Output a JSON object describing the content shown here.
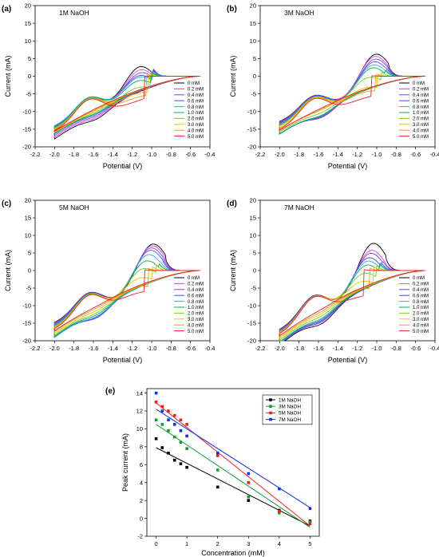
{
  "figure": {
    "panel_labels": [
      "(a)",
      "(b)",
      "(c)",
      "(d)",
      "(e)"
    ]
  },
  "chart_data": [
    {
      "type": "line",
      "panel": "(a)",
      "title": "1M NaOH",
      "xlabel": "Potential (V)",
      "ylabel": "Current (mA)",
      "xlim": [
        -2.2,
        -0.4
      ],
      "ylim": [
        -20,
        20
      ],
      "xticks": [
        "-2.2",
        "-2.0",
        "-1.8",
        "-1.6",
        "-1.4",
        "-1.2",
        "-1.0",
        "-0.8",
        "-0.6",
        "-0.4"
      ],
      "yticks": [
        "-20",
        "-15",
        "-10",
        "-5",
        "0",
        "5",
        "10",
        "15",
        "20"
      ],
      "legend": [
        "0 mM",
        "0.2 mM",
        "0.4 mM",
        "0.6 mM",
        "0.8 mM",
        "1.0 mM",
        "2.0 mM",
        "3.0 mM",
        "4.0 mM",
        "5.0 mM"
      ],
      "legend_position": "right",
      "start_x": -0.5,
      "vertex_x": -2.0,
      "series": [
        {
          "name": "0 mM",
          "values": [
            -15.0,
            9.2,
            -1.13
          ]
        },
        {
          "name": "0.2 mM",
          "values": [
            -14.8,
            8.2,
            -1.13
          ]
        },
        {
          "name": "0.4 mM",
          "values": [
            -14.6,
            7.3,
            -1.13
          ]
        },
        {
          "name": "0.6 mM",
          "values": [
            -14.4,
            6.5,
            -1.14
          ]
        },
        {
          "name": "0.8 mM",
          "values": [
            -14.2,
            6.0,
            -1.14
          ]
        },
        {
          "name": "1.0 mM",
          "values": [
            -14.6,
            5.2,
            -1.15
          ]
        },
        {
          "name": "2.0 mM",
          "values": [
            -15.0,
            3.5,
            -1.16
          ]
        },
        {
          "name": "3.0 mM",
          "values": [
            -15.2,
            2.0,
            -1.18
          ]
        },
        {
          "name": "4.0 mM",
          "values": [
            -15.4,
            1.0,
            -1.2
          ]
        },
        {
          "name": "5.0 mM",
          "values": [
            -15.6,
            0.0,
            -1.22
          ]
        }
      ]
    },
    {
      "type": "line",
      "panel": "(b)",
      "title": "3M NaOH",
      "xlabel": "Potential (V)",
      "ylabel": "Current (mA)",
      "xlim": [
        -2.2,
        -0.4
      ],
      "ylim": [
        -20,
        20
      ],
      "xticks": [
        "-2.2",
        "-2.0",
        "-1.8",
        "-1.6",
        "-1.4",
        "-1.2",
        "-1.0",
        "-0.8",
        "-0.6",
        "-0.4"
      ],
      "yticks": [
        "-20",
        "-15",
        "-10",
        "-5",
        "0",
        "5",
        "10",
        "15",
        "20"
      ],
      "legend": [
        "0 mM",
        "0.2 mM",
        "0.4 mM",
        "0.6 mM",
        "0.8 mM",
        "1.0 mM",
        "2.0 mM",
        "3.0 mM",
        "4.0 mM",
        "5.0 mM"
      ],
      "legend_position": "right",
      "start_x": -0.5,
      "vertex_x": -2.0,
      "series": [
        {
          "name": "0 mM",
          "values": [
            -13.0,
            11.0,
            -1.02
          ]
        },
        {
          "name": "0.2 mM",
          "values": [
            -13.2,
            10.5,
            -1.03
          ]
        },
        {
          "name": "0.4 mM",
          "values": [
            -13.4,
            9.8,
            -1.03
          ]
        },
        {
          "name": "0.6 mM",
          "values": [
            -13.6,
            9.2,
            -1.04
          ]
        },
        {
          "name": "0.8 mM",
          "values": [
            -13.8,
            8.5,
            -1.05
          ]
        },
        {
          "name": "1.0 mM",
          "values": [
            -14.0,
            7.8,
            -1.06
          ]
        },
        {
          "name": "2.0 mM",
          "values": [
            -14.2,
            5.5,
            -1.1
          ]
        },
        {
          "name": "3.0 mM",
          "values": [
            -14.4,
            3.0,
            -1.14
          ]
        },
        {
          "name": "4.0 mM",
          "values": [
            -14.8,
            2.0,
            -1.16
          ]
        },
        {
          "name": "5.0 mM",
          "values": [
            -15.2,
            0.5,
            -1.2
          ]
        }
      ]
    },
    {
      "type": "line",
      "panel": "(c)",
      "title": "5M NaOH",
      "xlabel": "Potential (V)",
      "ylabel": "Current (mA)",
      "xlim": [
        -2.2,
        -0.4
      ],
      "ylim": [
        -20,
        20
      ],
      "xticks": [
        "-2.2",
        "-2.0",
        "-1.8",
        "-1.6",
        "-1.4",
        "-1.2",
        "-1.0",
        "-0.8",
        "-0.6",
        "-0.4"
      ],
      "yticks": [
        "-20",
        "-15",
        "-10",
        "-5",
        "0",
        "5",
        "10",
        "15",
        "20"
      ],
      "legend": [
        "0 mM",
        "0.2 mM",
        "0.4 mM",
        "0.6 mM",
        "0.8 mM",
        "1.0 mM",
        "2.0 mM",
        "3.0 mM",
        "4.0 mM",
        "5.0 mM"
      ],
      "legend_position": "right",
      "start_x": -0.5,
      "vertex_x": -2.0,
      "series": [
        {
          "name": "0 mM",
          "values": [
            -15.0,
            12.8,
            -1.0
          ]
        },
        {
          "name": "0.2 mM",
          "values": [
            -15.2,
            12.5,
            -1.01
          ]
        },
        {
          "name": "0.4 mM",
          "values": [
            -15.4,
            12.0,
            -1.02
          ]
        },
        {
          "name": "0.6 mM",
          "values": [
            -15.6,
            11.5,
            -1.03
          ]
        },
        {
          "name": "0.8 mM",
          "values": [
            -15.8,
            10.5,
            -1.05
          ]
        },
        {
          "name": "1.0 mM",
          "values": [
            -16.0,
            9.0,
            -1.07
          ]
        },
        {
          "name": "2.0 mM",
          "values": [
            -16.2,
            7.2,
            -1.1
          ]
        },
        {
          "name": "3.0 mM",
          "values": [
            -16.4,
            5.0,
            -1.14
          ]
        },
        {
          "name": "4.0 mM",
          "values": [
            -16.6,
            2.8,
            -1.18
          ]
        },
        {
          "name": "5.0 mM",
          "values": [
            -16.8,
            1.2,
            -1.22
          ]
        }
      ]
    },
    {
      "type": "line",
      "panel": "(d)",
      "title": "7M NaOH",
      "xlabel": "Potential (V)",
      "ylabel": "Current (mA)",
      "xlim": [
        -2.2,
        -0.4
      ],
      "ylim": [
        -20,
        20
      ],
      "xticks": [
        "-2.2",
        "-2.0",
        "-1.8",
        "-1.6",
        "-1.4",
        "-1.2",
        "-1.0",
        "-0.8",
        "-0.6",
        "-0.4"
      ],
      "yticks": [
        "-20",
        "-15",
        "-10",
        "-5",
        "0",
        "5",
        "10",
        "15",
        "20"
      ],
      "legend": [
        "0 mM",
        "0.2 mM",
        "0.4 mM",
        "0.6 mM",
        "0.8 mM",
        "1.0 mM",
        "2.0 mM",
        "3.0 mM",
        "4.0 mM",
        "5.0 mM"
      ],
      "legend_position": "right",
      "start_x": -0.5,
      "vertex_x": -2.0,
      "series": [
        {
          "name": "0 mM",
          "values": [
            -17.0,
            14.2,
            -1.05
          ]
        },
        {
          "name": "0.2 mM",
          "values": [
            -17.2,
            12.5,
            -1.07
          ]
        },
        {
          "name": "0.4 mM",
          "values": [
            -17.4,
            11.8,
            -1.08
          ]
        },
        {
          "name": "0.6 mM",
          "values": [
            -17.5,
            10.8,
            -1.1
          ]
        },
        {
          "name": "0.8 mM",
          "values": [
            -17.6,
            10.0,
            -1.11
          ]
        },
        {
          "name": "1.0 mM",
          "values": [
            -17.7,
            9.0,
            -1.12
          ]
        },
        {
          "name": "2.0 mM",
          "values": [
            -17.8,
            7.0,
            -1.15
          ]
        },
        {
          "name": "3.0 mM",
          "values": [
            -17.9,
            5.0,
            -1.18
          ]
        },
        {
          "name": "4.0 mM",
          "values": [
            -18.0,
            3.2,
            -1.22
          ]
        },
        {
          "name": "5.0 mM",
          "values": [
            -18.2,
            1.2,
            -1.28
          ]
        }
      ]
    },
    {
      "type": "scatter",
      "panel": "(e)",
      "title": "",
      "xlabel": "Concentration (mM)",
      "ylabel": "Peak current (mA)",
      "xlim": [
        -0.3,
        5.3
      ],
      "ylim": [
        -2,
        14.5
      ],
      "xticks": [
        "0",
        "1",
        "2",
        "3",
        "4",
        "5"
      ],
      "yticks": [
        "-2",
        "0",
        "2",
        "4",
        "6",
        "8",
        "10",
        "12",
        "14"
      ],
      "legend_position": "top-right",
      "series": [
        {
          "name": "1M NaOH",
          "x": [
            0,
            0.2,
            0.4,
            0.6,
            0.8,
            1.0,
            2,
            3,
            4,
            5
          ],
          "values": [
            8.9,
            7.9,
            7.3,
            6.5,
            6.1,
            5.7,
            3.5,
            2.0,
            0.9,
            -0.3
          ],
          "fit": [
            7.9,
            -1.75
          ]
        },
        {
          "name": "3M NaOH",
          "x": [
            0,
            0.2,
            0.4,
            0.6,
            0.8,
            1.0,
            2,
            3,
            4,
            5
          ],
          "values": [
            11.0,
            10.5,
            9.8,
            9.1,
            8.5,
            7.8,
            5.4,
            2.4,
            0.6,
            -0.4
          ],
          "fit": [
            10.5,
            -2.3
          ]
        },
        {
          "name": "5M NaOH",
          "x": [
            0,
            0.2,
            0.4,
            0.6,
            0.8,
            1.0,
            2,
            3,
            4,
            5
          ],
          "values": [
            13.0,
            12.5,
            12.0,
            11.5,
            11.0,
            10.5,
            7.0,
            4.0,
            0.8,
            -0.6
          ],
          "fit": [
            12.9,
            -2.75
          ]
        },
        {
          "name": "7M NaOH",
          "x": [
            0,
            0.2,
            0.4,
            0.6,
            0.8,
            1.0,
            2,
            3,
            4,
            5
          ],
          "values": [
            14.0,
            12.0,
            11.0,
            10.5,
            9.8,
            9.2,
            7.3,
            5.0,
            3.3,
            1.1
          ],
          "fit": [
            12.2,
            -2.2
          ]
        }
      ]
    }
  ],
  "colors": {
    "cv": [
      "#000000",
      "#e040e0",
      "#8040e0",
      "#4050f0",
      "#30a8ff",
      "#10a850",
      "#70d020",
      "#d0d000",
      "#ff9020",
      "#f02020"
    ],
    "peak": [
      "#000000",
      "#10a030",
      "#f02020",
      "#1030f0"
    ]
  }
}
